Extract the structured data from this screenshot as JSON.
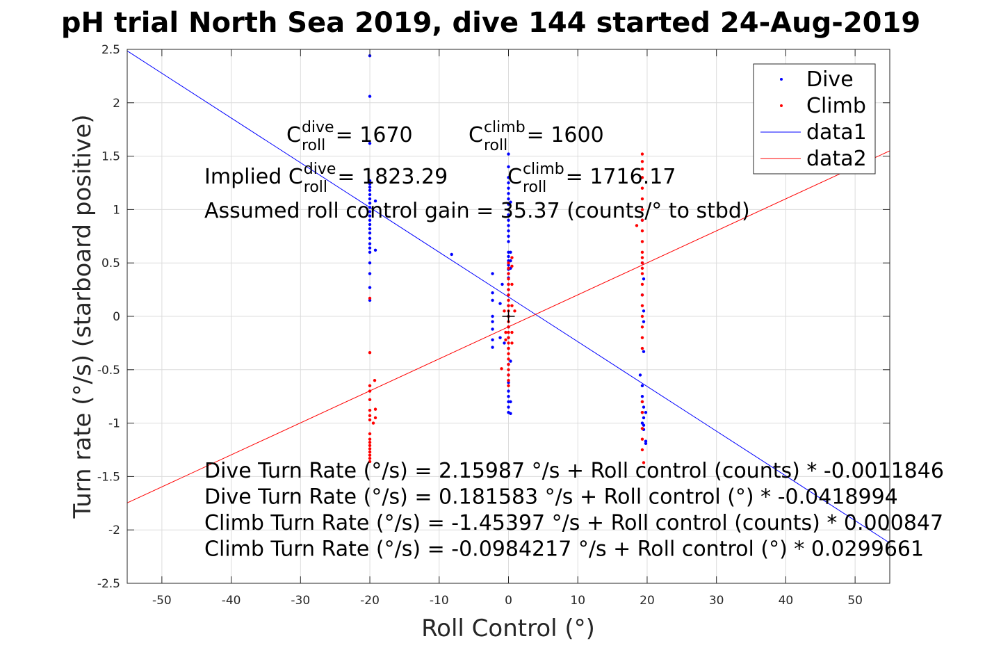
{
  "chart_data": {
    "type": "scatter",
    "title": "pH trial North Sea 2019, dive 144 started 24-Aug-2019",
    "xlabel": "Roll Control (°)",
    "ylabel": "Turn rate (°/s) (starboard positive)",
    "xlim": [
      -55,
      55
    ],
    "ylim": [
      -2.5,
      2.5
    ],
    "xticks": [
      -50,
      -40,
      -30,
      -20,
      -10,
      0,
      10,
      20,
      30,
      40,
      50
    ],
    "yticks": [
      -2.5,
      -2,
      -1.5,
      -1,
      -0.5,
      0,
      0.5,
      1,
      1.5,
      2,
      2.5
    ],
    "xtick_labels": [
      "-50",
      "-40",
      "-30",
      "-20",
      "-10",
      "0",
      "10",
      "20",
      "30",
      "40",
      "50"
    ],
    "ytick_labels": [
      "-2.5",
      "-2",
      "-1.5",
      "-1",
      "-0.5",
      "0",
      "0.5",
      "1",
      "1.5",
      "2",
      "2.5"
    ],
    "grid": true,
    "legend_position": "top-right",
    "series": [
      {
        "name": "Dive",
        "kind": "points",
        "color": "#0000ff",
        "points": [
          [
            -20,
            2.44
          ],
          [
            -20,
            2.06
          ],
          [
            -20,
            1.62
          ],
          [
            -20,
            1.27
          ],
          [
            -20,
            1.24
          ],
          [
            -20,
            1.21
          ],
          [
            -20,
            1.18
          ],
          [
            -20,
            1.14
          ],
          [
            -20,
            1.1
          ],
          [
            -20,
            1.06
          ],
          [
            -20,
            1.02
          ],
          [
            -20,
            0.98
          ],
          [
            -20,
            0.94
          ],
          [
            -20,
            0.9
          ],
          [
            -20,
            0.86
          ],
          [
            -20,
            0.82
          ],
          [
            -20,
            0.78
          ],
          [
            -20,
            0.73
          ],
          [
            -20,
            0.68
          ],
          [
            -20,
            0.64
          ],
          [
            -20,
            0.6
          ],
          [
            -20,
            0.5
          ],
          [
            -20,
            0.4
          ],
          [
            -20,
            0.27
          ],
          [
            -20,
            0.15
          ],
          [
            -19.2,
            1.08
          ],
          [
            -19.2,
            0.62
          ],
          [
            -8.2,
            0.58
          ],
          [
            -2.3,
            0.4
          ],
          [
            -2.3,
            0.22
          ],
          [
            -2.3,
            0.15
          ],
          [
            -2.3,
            0.0
          ],
          [
            -2.3,
            -0.05
          ],
          [
            -2.3,
            -0.12
          ],
          [
            -2.3,
            -0.22
          ],
          [
            -2.3,
            -0.29
          ],
          [
            -1.2,
            0.12
          ],
          [
            -1.2,
            -0.2
          ],
          [
            -0.9,
            0.3
          ],
          [
            -0.6,
            -0.25
          ],
          [
            0,
            1.52
          ],
          [
            0,
            1.4
          ],
          [
            0,
            1.3
          ],
          [
            0,
            1.25
          ],
          [
            0,
            1.2
          ],
          [
            0,
            1.15
          ],
          [
            0,
            1.1
          ],
          [
            0,
            1.05
          ],
          [
            0,
            1.0
          ],
          [
            0,
            0.95
          ],
          [
            0,
            0.9
          ],
          [
            0,
            0.85
          ],
          [
            0,
            0.8
          ],
          [
            0,
            0.75
          ],
          [
            0,
            0.7
          ],
          [
            0,
            0.6
          ],
          [
            0,
            0.56
          ],
          [
            0,
            0.52
          ],
          [
            0,
            0.48
          ],
          [
            0,
            0.44
          ],
          [
            0,
            0.4
          ],
          [
            0,
            0.36
          ],
          [
            0,
            0.3
          ],
          [
            0,
            0.25
          ],
          [
            0,
            0.2
          ],
          [
            0,
            0.1
          ],
          [
            0,
            0.0
          ],
          [
            0,
            -0.1
          ],
          [
            0,
            -0.2
          ],
          [
            0,
            -0.3
          ],
          [
            0,
            -0.45
          ],
          [
            0,
            -0.55
          ],
          [
            0,
            -0.62
          ],
          [
            0,
            -0.7
          ],
          [
            0,
            -0.75
          ],
          [
            0,
            -0.8
          ],
          [
            0,
            -0.85
          ],
          [
            0,
            -0.9
          ],
          [
            0.3,
            0.6
          ],
          [
            0.3,
            0.52
          ],
          [
            0.3,
            0.45
          ],
          [
            0.3,
            -0.42
          ],
          [
            0.3,
            -0.8
          ],
          [
            0.3,
            -0.91
          ],
          [
            0.3,
            1.07
          ],
          [
            19,
            -0.55
          ],
          [
            19.3,
            0.9
          ],
          [
            19.3,
            0.5
          ],
          [
            19.3,
            -0.65
          ],
          [
            19.3,
            -0.75
          ],
          [
            19.3,
            -0.8
          ],
          [
            19.3,
            -0.9
          ],
          [
            19.3,
            -1.0
          ],
          [
            19.5,
            0.05
          ],
          [
            19.5,
            -0.05
          ],
          [
            19.5,
            -0.33
          ],
          [
            19.5,
            -0.85
          ],
          [
            19.5,
            -0.95
          ],
          [
            19.5,
            -1.02
          ],
          [
            19.5,
            -1.06
          ],
          [
            19.8,
            -0.9
          ],
          [
            19.8,
            -1.17
          ],
          [
            19.8,
            -1.19
          ],
          [
            19.5,
            0.35
          ],
          [
            19.3,
            0.2
          ]
        ]
      },
      {
        "name": "Climb",
        "kind": "points",
        "color": "#ff0000",
        "points": [
          [
            -20,
            0.17
          ],
          [
            -20,
            -0.34
          ],
          [
            -20,
            -0.65
          ],
          [
            -20,
            -0.7
          ],
          [
            -20,
            -0.78
          ],
          [
            -20,
            -0.88
          ],
          [
            -20,
            -0.93
          ],
          [
            -20,
            -0.97
          ],
          [
            -20,
            -1.1
          ],
          [
            -20,
            -1.15
          ],
          [
            -20,
            -1.18
          ],
          [
            -20,
            -1.21
          ],
          [
            -20,
            -1.24
          ],
          [
            -20,
            -1.27
          ],
          [
            -20,
            -1.3
          ],
          [
            -20,
            -1.33
          ],
          [
            -20,
            -1.36
          ],
          [
            -19.3,
            -0.6
          ],
          [
            -19.2,
            -0.87
          ],
          [
            -19.2,
            -0.95
          ],
          [
            -19.5,
            -1.0
          ],
          [
            -1,
            -0.49
          ],
          [
            -0.6,
            0.05
          ],
          [
            -0.4,
            -0.15
          ],
          [
            -0.4,
            -0.22
          ],
          [
            0,
            0.5
          ],
          [
            0,
            0.45
          ],
          [
            0,
            0.4
          ],
          [
            0,
            0.35
          ],
          [
            0,
            0.3
          ],
          [
            0,
            0.25
          ],
          [
            0,
            0.2
          ],
          [
            0,
            0.15
          ],
          [
            0,
            0.1
          ],
          [
            0,
            0.05
          ],
          [
            0,
            0.0
          ],
          [
            0,
            -0.05
          ],
          [
            0,
            -0.1
          ],
          [
            0,
            -0.15
          ],
          [
            0,
            -0.2
          ],
          [
            0,
            -0.25
          ],
          [
            0,
            -0.3
          ],
          [
            0,
            -0.35
          ],
          [
            0,
            -0.4
          ],
          [
            0,
            -0.45
          ],
          [
            0,
            -0.5
          ],
          [
            0,
            -0.55
          ],
          [
            0,
            -0.6
          ],
          [
            0,
            -0.65
          ],
          [
            0.5,
            0.55
          ],
          [
            0.5,
            0.47
          ],
          [
            0.5,
            0.3
          ],
          [
            0.5,
            0.1
          ],
          [
            0.5,
            -0.15
          ],
          [
            0.5,
            -0.25
          ],
          [
            0.9,
            0.05
          ],
          [
            18.5,
            0.85
          ],
          [
            19.3,
            1.52
          ],
          [
            19.3,
            1.45
          ],
          [
            19.3,
            1.38
          ],
          [
            19.3,
            1.3
          ],
          [
            19.3,
            1.2
          ],
          [
            19.3,
            1.1
          ],
          [
            19.3,
            1.0
          ],
          [
            19.3,
            0.9
          ],
          [
            19.3,
            0.8
          ],
          [
            19.3,
            0.7
          ],
          [
            19.3,
            0.6
          ],
          [
            19.3,
            0.55
          ],
          [
            19.3,
            0.5
          ],
          [
            19.3,
            0.45
          ],
          [
            19.3,
            0.4
          ],
          [
            19.3,
            0.3
          ],
          [
            19.3,
            0.2
          ],
          [
            19.3,
            0.1
          ],
          [
            19.3,
            0.0
          ],
          [
            19.3,
            -0.1
          ],
          [
            19.3,
            -0.2
          ],
          [
            19.3,
            -0.3
          ],
          [
            19.3,
            -0.8
          ],
          [
            19.3,
            -0.9
          ],
          [
            19.3,
            -1.05
          ],
          [
            19.3,
            -1.15
          ],
          [
            19.3,
            -1.25
          ],
          [
            19.5,
            -1.37
          ]
        ]
      },
      {
        "name": "data1",
        "kind": "line",
        "color": "#0000ff",
        "x": [
          -55,
          55
        ],
        "y": [
          2.4856,
          -2.1224
        ]
      },
      {
        "name": "data2",
        "kind": "line",
        "color": "#ff0000",
        "x": [
          -55,
          55
        ],
        "y": [
          -1.7466,
          1.5497
        ]
      }
    ],
    "marker": {
      "x": 0,
      "y": 0,
      "color": "#000000",
      "symbol": "+"
    },
    "annotations": {
      "c_dive": {
        "prefix": "C",
        "sup": "dive",
        "sub": "roll",
        "suffix": " = 1670"
      },
      "c_climb": {
        "prefix": "C",
        "sup": "climb",
        "sub": "roll",
        "suffix": " = 1600"
      },
      "implied_dive": {
        "prefix": "Implied C",
        "sup": "dive",
        "sub": "roll",
        "suffix": " = 1823.29"
      },
      "implied_climb": {
        "prefix": "C",
        "sup": "climb",
        "sub": "roll",
        "suffix": " = 1716.17"
      },
      "gain": "Assumed roll control gain = 35.37 (counts/° to stbd)",
      "fit_lines": [
        "Dive Turn Rate (°/s) = 2.15987 °/s + Roll control (counts) * -0.0011846",
        "Dive Turn Rate (°/s) = 0.181583 °/s + Roll control (°) * -0.0418994",
        "Climb Turn Rate (°/s) = -1.45397 °/s + Roll control (counts) * 0.000847",
        "Climb Turn Rate (°/s) = -0.0984217 °/s + Roll control (°) * 0.0299661"
      ]
    }
  }
}
